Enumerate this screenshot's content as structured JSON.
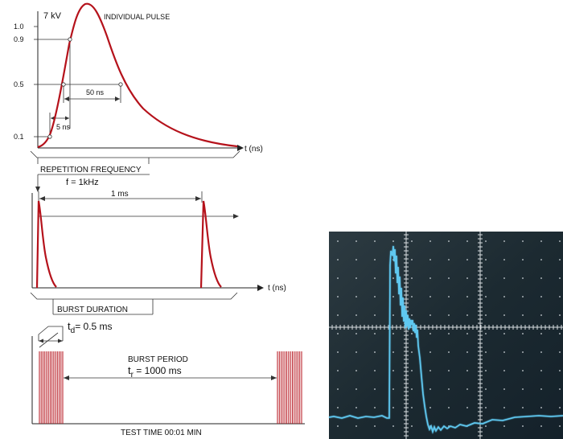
{
  "pulse_panel": {
    "voltage_label": "7 kV",
    "title": "INDIVIDUAL PULSE",
    "y_ticks": [
      "1.0",
      "0.9",
      "0.5",
      "0.1"
    ],
    "rise_time_label": "5 ns",
    "width_label": "50 ns",
    "axis_label": "t  (ns)",
    "colors": {
      "pulse": "#b5121b",
      "axis": "#222222"
    }
  },
  "repetition_panel": {
    "title": "REPETITION FREQUENCY",
    "frequency_label": "f = 1kHz",
    "period_label": "1 ms",
    "axis_label": "t  (ns)"
  },
  "burst_panel": {
    "title": "BURST DURATION",
    "duration_label_main": "t",
    "duration_label_sub": "d",
    "duration_label_rest": "= 0.5 ms",
    "period_title": "BURST PERIOD",
    "period_label_main": "t",
    "period_label_sub": "r",
    "period_label_rest": " = 1000 ms",
    "footer": "TEST TIME 00:01 MIN"
  },
  "oscilloscope": {
    "trace_color": "#5ec8f0",
    "background": "#1f2d35"
  }
}
